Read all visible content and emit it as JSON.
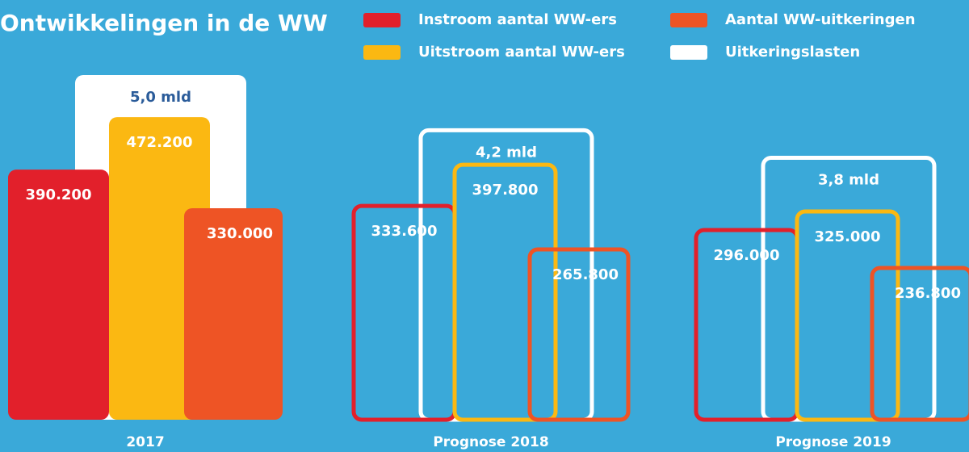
{
  "chart_data": {
    "type": "bar",
    "title": "Ontwikkelingen in de WW",
    "categories": [
      "2017",
      "Prognose 2018",
      "Prognose 2019"
    ],
    "filled": [
      true,
      false,
      false
    ],
    "series": [
      {
        "name": "Instroom aantal WW-ers",
        "color": "#e2202b",
        "values": [
          390200,
          333600,
          296000
        ],
        "value_labels": [
          "390.200",
          "333.600",
          "296.000"
        ]
      },
      {
        "name": "Uitstroom aantal WW-ers",
        "color": "#fbb812",
        "values": [
          472200,
          397800,
          325000
        ],
        "value_labels": [
          "472.200",
          "397.800",
          "325.000"
        ]
      },
      {
        "name": "Aantal WW-uitkeringen",
        "color": "#ee5425",
        "values": [
          330000,
          265800,
          236800
        ],
        "value_labels": [
          "330.000",
          "265.800",
          "236.800"
        ]
      },
      {
        "name": "Uitkeringslasten",
        "color": "#ffffff",
        "values": [
          5.0,
          4.2,
          3.8
        ],
        "value_labels": [
          "5,0 mld",
          "4,2 mld",
          "3,8 mld"
        ]
      }
    ]
  }
}
